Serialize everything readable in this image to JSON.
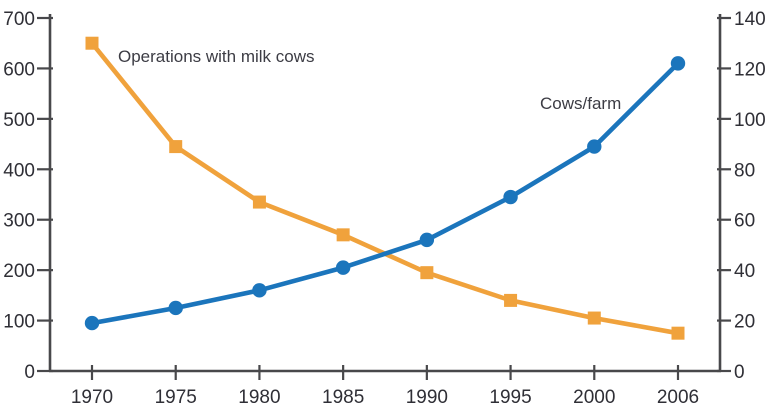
{
  "chart_data": {
    "type": "line",
    "title": "",
    "categories": [
      "1970",
      "1975",
      "1980",
      "1985",
      "1990",
      "1995",
      "2000",
      "2006"
    ],
    "series": [
      {
        "name": "Operations with milk cows",
        "axis": "left",
        "color": "#F0A23C",
        "marker": "square",
        "values": [
          650,
          445,
          335,
          270,
          195,
          140,
          105,
          75
        ]
      },
      {
        "name": "Cows/farm",
        "axis": "right",
        "color": "#1B75BC",
        "marker": "circle",
        "values": [
          19,
          25,
          32,
          41,
          52,
          69,
          89,
          122
        ]
      }
    ],
    "axes": {
      "left": {
        "min": 0,
        "max": 700,
        "tick_step": 100,
        "tick_labels": [
          "0",
          "100",
          "200",
          "300",
          "400",
          "500",
          "600",
          "700"
        ]
      },
      "right": {
        "min": 0,
        "max": 140,
        "tick_step": 20,
        "tick_labels": [
          "0",
          "20",
          "40",
          "60",
          "80",
          "100",
          "120",
          "140"
        ]
      },
      "x": {
        "tick_labels": [
          "1970",
          "1975",
          "1980",
          "1985",
          "1990",
          "1995",
          "2000",
          "2006"
        ]
      }
    },
    "annotations": [
      {
        "text": "Operations with milk cows",
        "x": 118,
        "y": 62,
        "anchor": "start",
        "series": 0
      },
      {
        "text": "Cows/farm",
        "x": 540,
        "y": 109,
        "anchor": "start",
        "series": 1
      }
    ],
    "grid": false,
    "legend_position": "inline-annotations"
  },
  "style": {
    "axis_color": "#48484b",
    "tick_label_color": "#2f2f36",
    "annotation_color": "#3c3c44",
    "background": "#ffffff"
  }
}
